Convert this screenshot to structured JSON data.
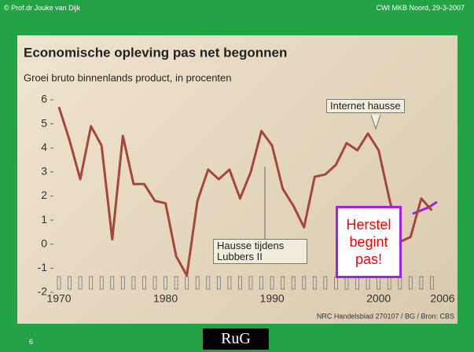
{
  "header": {
    "left": "© Prof.dr Jouke van Dijk",
    "right": "CWI MKB Noord, 29-3-2007"
  },
  "footer": {
    "page_number": "6",
    "logo": "RuG"
  },
  "chart_data": {
    "type": "line",
    "title": "Economische opleving pas net begonnen",
    "subtitle": "Groei bruto binnenlands product, in procenten",
    "x": [
      1970,
      1971,
      1972,
      1973,
      1974,
      1975,
      1976,
      1977,
      1978,
      1979,
      1980,
      1981,
      1982,
      1983,
      1984,
      1985,
      1986,
      1987,
      1988,
      1989,
      1990,
      1991,
      1992,
      1993,
      1994,
      1995,
      1996,
      1997,
      1998,
      1999,
      2000,
      2001,
      2002,
      2003,
      2004,
      2005
    ],
    "values": [
      5.7,
      4.3,
      2.7,
      4.9,
      4.1,
      0.2,
      4.5,
      2.5,
      2.5,
      1.8,
      1.7,
      -0.5,
      -1.3,
      1.8,
      3.1,
      2.7,
      3.1,
      1.9,
      3.0,
      4.7,
      4.1,
      2.3,
      1.6,
      0.7,
      2.8,
      2.9,
      3.3,
      4.2,
      3.9,
      4.6,
      3.9,
      1.9,
      0.1,
      0.3,
      1.9,
      1.4
    ],
    "color": "#a5463c",
    "xlim": [
      1970,
      2006
    ],
    "xticks": [
      1970,
      1980,
      1990,
      2000,
      2006
    ],
    "ylim": [
      -2,
      6
    ],
    "yticks": [
      -2,
      -1,
      0,
      1,
      2,
      3,
      4,
      5,
      6
    ],
    "grid": false,
    "annotations": [
      "Internet hausse",
      "Hausse tijdens Lubbers II",
      "Herstel begint pas!"
    ],
    "source": "NRC Handelsblad 270107 / BG / Bron: CBS"
  }
}
